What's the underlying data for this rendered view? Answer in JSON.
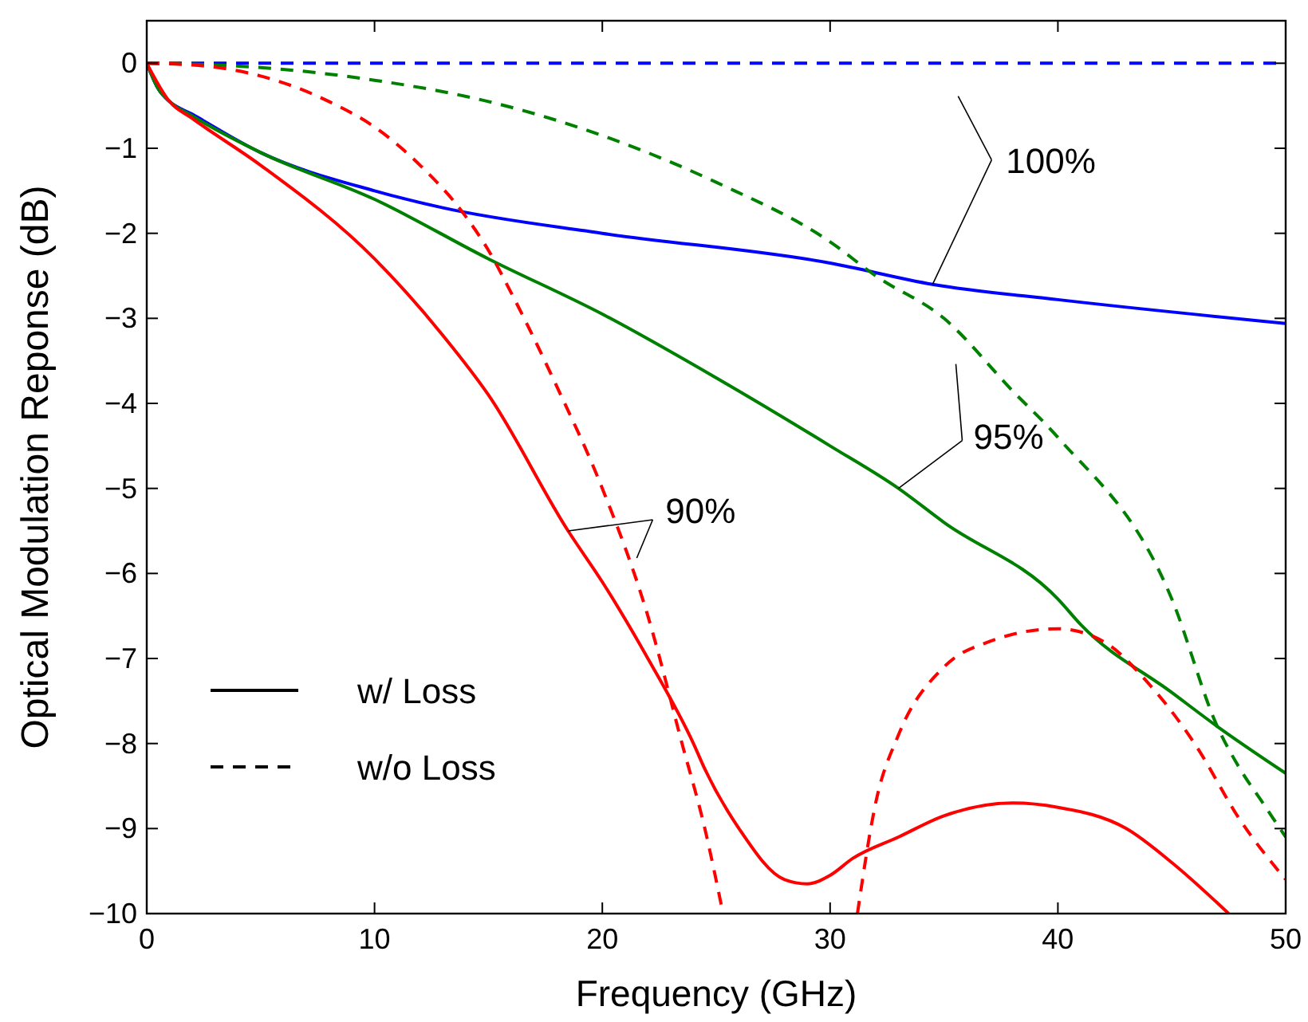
{
  "chart_data": {
    "type": "line",
    "xlabel": "Frequency (GHz)",
    "ylabel": "Optical Modulation Reponse (dB)",
    "xlim": [
      0,
      50
    ],
    "ylim": [
      -10,
      0.5
    ],
    "xticks": [
      0,
      10,
      20,
      30,
      40,
      50
    ],
    "yticks": [
      -10,
      -9,
      -8,
      -7,
      -6,
      -5,
      -4,
      -3,
      -2,
      -1,
      0
    ],
    "grid": false,
    "legend": "bottom left",
    "marker": "none",
    "series": [
      {
        "name": "w/ Loss",
        "color": "#000000",
        "line_style": "solid"
      },
      {
        "name": "w/o Loss",
        "color": "#000000",
        "line_style": "dashed"
      },
      {
        "color": "#0000ff",
        "line_style": "solid",
        "x": [
          0,
          0.5,
          1,
          2,
          5,
          10,
          13,
          20,
          30,
          34.5,
          40,
          50
        ],
        "values": [
          0,
          -0.3,
          -0.45,
          -0.6,
          -1.05,
          -1.5,
          -1.7,
          -2.0,
          -2.35,
          -2.6,
          -2.78,
          -3.06
        ]
      },
      {
        "color": "#0000ff",
        "line_style": "dashed",
        "x": [
          0,
          50
        ],
        "values": [
          0,
          0
        ]
      },
      {
        "color": "#008000",
        "line_style": "solid",
        "x": [
          0,
          0.5,
          1,
          2,
          5,
          10,
          15,
          20,
          25,
          30,
          33,
          35,
          40,
          41,
          45,
          47,
          50
        ],
        "values": [
          0,
          -0.3,
          -0.45,
          -0.62,
          -1.05,
          -1.6,
          -2.3,
          -2.95,
          -3.7,
          -4.5,
          -5.0,
          -5.4,
          -6.3,
          -6.6,
          -7.4,
          -7.8,
          -8.35
        ]
      },
      {
        "color": "#008000",
        "line_style": "dashed",
        "x": [
          0,
          5,
          10,
          15,
          20,
          25,
          30,
          32,
          35,
          38,
          40,
          45,
          47,
          48,
          49,
          50
        ],
        "values": [
          0,
          -0.05,
          -0.2,
          -0.45,
          -0.85,
          -1.4,
          -2.1,
          -2.5,
          -3.0,
          -3.85,
          -4.4,
          -6.3,
          -7.8,
          -8.3,
          -8.7,
          -9.1
        ]
      },
      {
        "color": "#ff0000",
        "line_style": "solid",
        "x": [
          0,
          1,
          2,
          5,
          10,
          13,
          15,
          18.5,
          20,
          22,
          24,
          24.5,
          26,
          28,
          29,
          30,
          31,
          33,
          35,
          38,
          40,
          43,
          45,
          47.5
        ],
        "values": [
          0,
          -0.45,
          -0.65,
          -1.2,
          -2.3,
          -3.2,
          -3.9,
          -5.5,
          -6.1,
          -7.0,
          -8.0,
          -8.3,
          -9.0,
          -9.6,
          -9.65,
          -9.55,
          -9.35,
          -9.1,
          -8.85,
          -8.7,
          -8.75,
          -9.0,
          -9.4,
          -10
        ]
      },
      {
        "color": "#ff0000",
        "line_style": "dashed",
        "x": [
          0,
          2,
          5,
          8,
          10,
          12,
          14,
          15,
          16,
          18,
          20,
          22,
          23.5,
          24.5,
          25.3,
          28,
          31.2,
          32,
          33,
          35,
          37,
          40,
          42,
          44,
          46,
          48,
          50
        ],
        "values": [
          0,
          -0.02,
          -0.15,
          -0.45,
          -0.75,
          -1.2,
          -1.8,
          -2.2,
          -2.7,
          -3.8,
          -5.0,
          -6.5,
          -8.0,
          -9.0,
          -10,
          null,
          -10,
          -8.7,
          -7.9,
          -7.1,
          -6.8,
          -6.65,
          -6.8,
          -7.3,
          -8.0,
          -8.9,
          -9.6
        ]
      }
    ],
    "annotations": [
      {
        "text": "100%",
        "x": 34.5,
        "y": -2.6
      },
      {
        "text": "95%",
        "x": 33,
        "y": -5.0
      },
      {
        "text": "90%",
        "x": 18.5,
        "y": -5.5
      }
    ]
  }
}
